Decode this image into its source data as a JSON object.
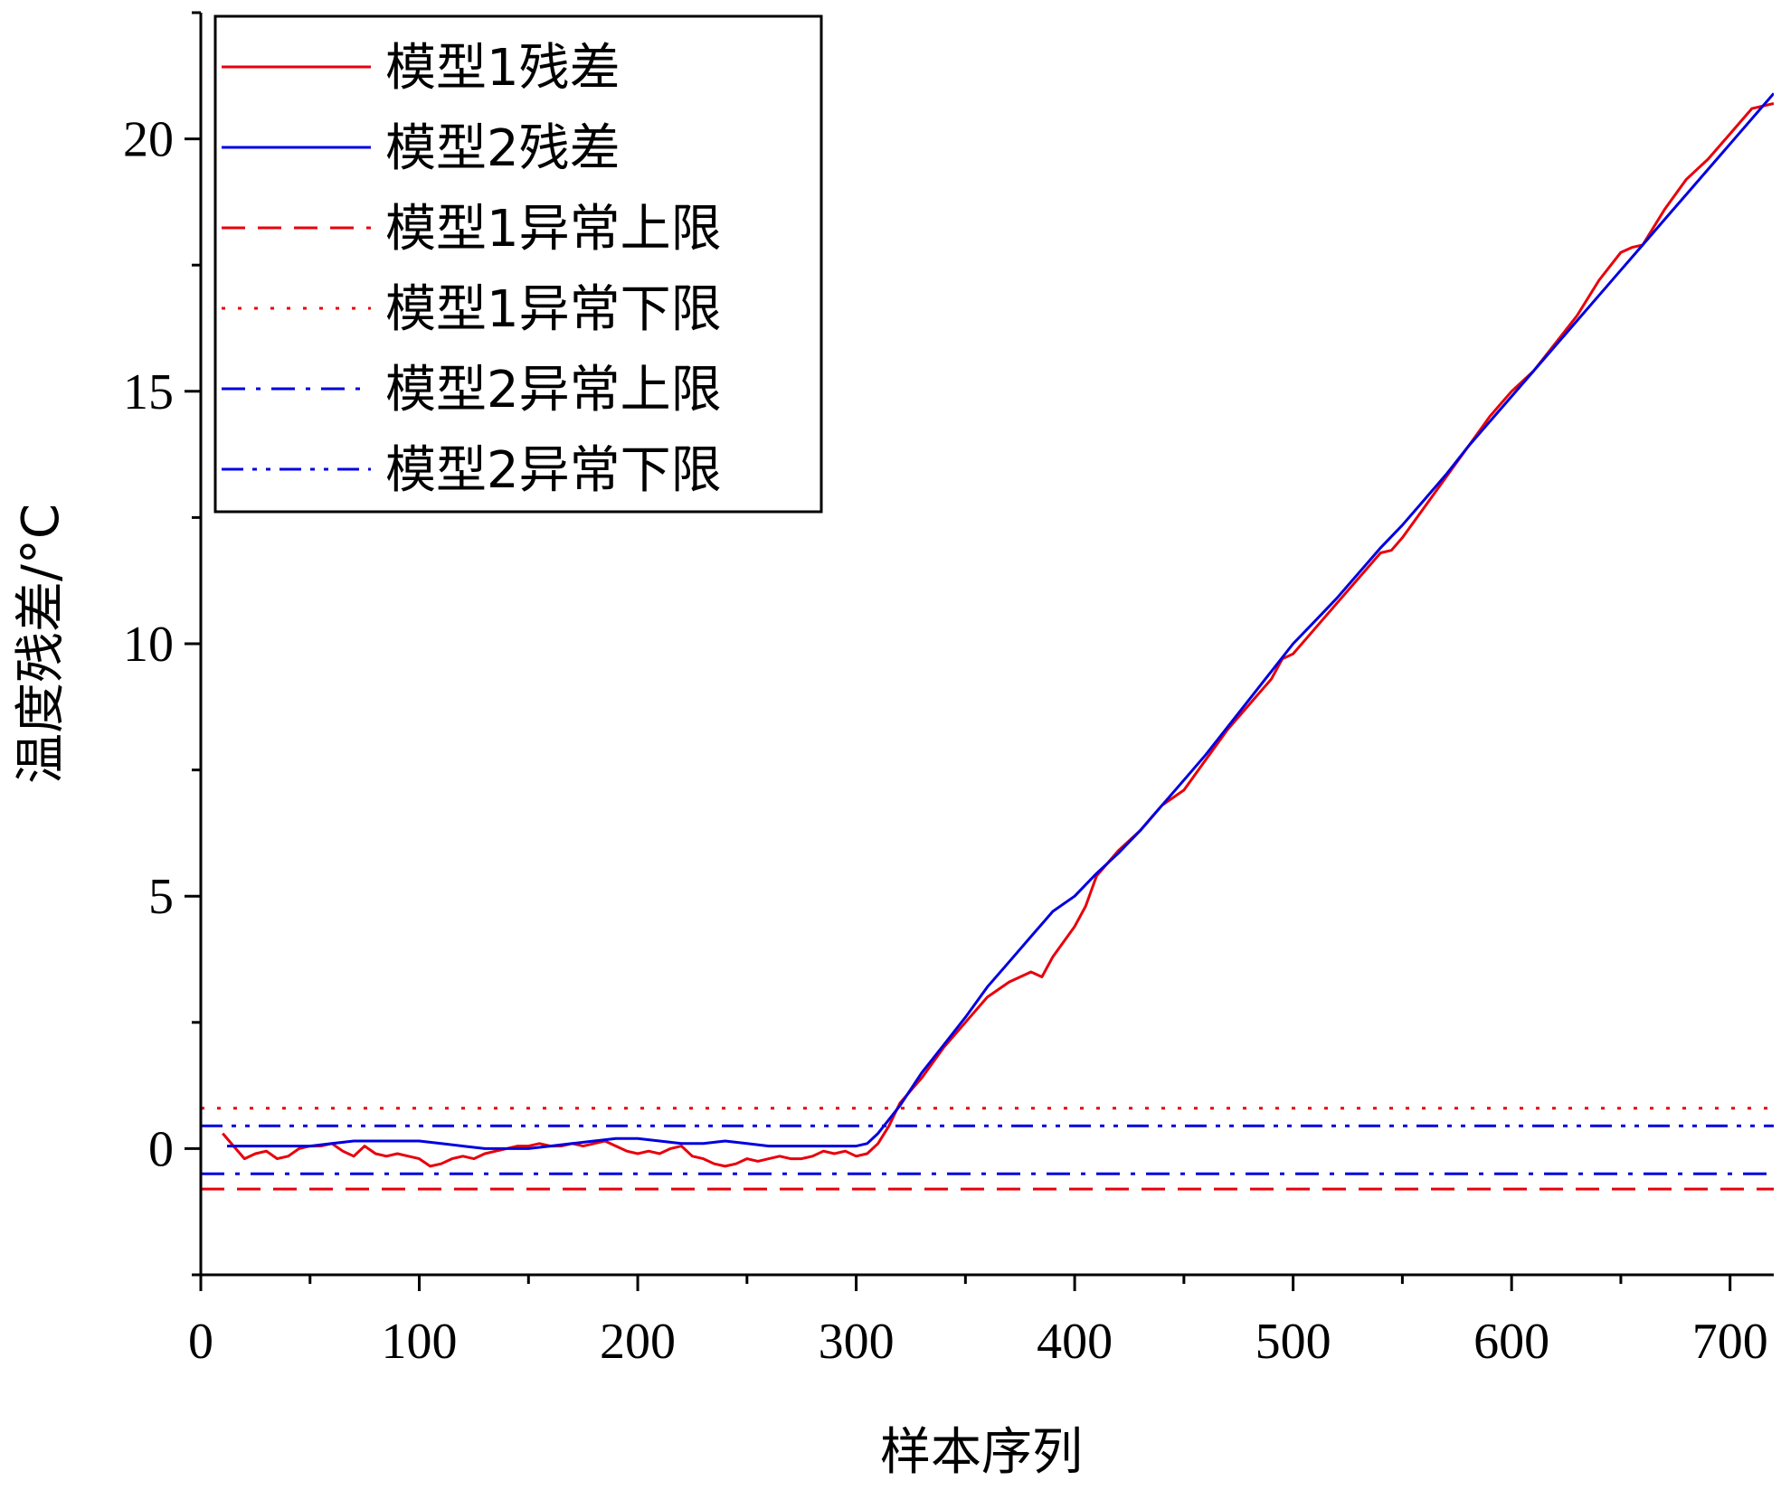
{
  "chart_data": {
    "type": "line",
    "title": "",
    "xlabel": "样本序列",
    "ylabel": "温度残差/°C",
    "xlim": [
      0,
      720
    ],
    "ylim": [
      -2.5,
      22.5
    ],
    "xticks_major": [
      0,
      100,
      200,
      300,
      400,
      500,
      600,
      700
    ],
    "xticks_minor": [
      50,
      150,
      250,
      350,
      450,
      550,
      650
    ],
    "yticks_major": [
      0,
      5,
      10,
      15,
      20
    ],
    "yticks_minor": [
      -2.5,
      2.5,
      7.5,
      12.5,
      17.5,
      22.5
    ],
    "grid": false,
    "legend_position": "top-left",
    "series": [
      {
        "name": "模型1残差",
        "color": "#e8000b",
        "style": "solid",
        "x": [
          10,
          15,
          20,
          25,
          30,
          35,
          40,
          45,
          50,
          55,
          60,
          65,
          70,
          75,
          80,
          85,
          90,
          95,
          100,
          105,
          110,
          115,
          120,
          125,
          130,
          135,
          140,
          145,
          150,
          155,
          160,
          165,
          170,
          175,
          180,
          185,
          190,
          195,
          200,
          205,
          210,
          215,
          220,
          225,
          230,
          235,
          240,
          245,
          250,
          255,
          260,
          265,
          270,
          275,
          280,
          285,
          290,
          295,
          300,
          305,
          310,
          315,
          320,
          330,
          340,
          350,
          360,
          370,
          380,
          385,
          390,
          400,
          405,
          410,
          420,
          430,
          440,
          450,
          460,
          470,
          480,
          490,
          495,
          500,
          510,
          520,
          530,
          540,
          545,
          550,
          560,
          570,
          580,
          590,
          600,
          610,
          620,
          630,
          640,
          650,
          655,
          660,
          670,
          680,
          690,
          700,
          710,
          720
        ],
        "y": [
          0.3,
          0.05,
          -0.2,
          -0.1,
          -0.05,
          -0.2,
          -0.15,
          0.0,
          0.05,
          0.05,
          0.1,
          -0.05,
          -0.15,
          0.05,
          -0.1,
          -0.15,
          -0.1,
          -0.15,
          -0.2,
          -0.35,
          -0.3,
          -0.2,
          -0.15,
          -0.2,
          -0.1,
          -0.05,
          0.0,
          0.05,
          0.05,
          0.1,
          0.05,
          0.05,
          0.1,
          0.05,
          0.1,
          0.15,
          0.05,
          -0.05,
          -0.1,
          -0.05,
          -0.1,
          0.0,
          0.05,
          -0.15,
          -0.2,
          -0.3,
          -0.35,
          -0.3,
          -0.2,
          -0.25,
          -0.2,
          -0.15,
          -0.2,
          -0.2,
          -0.15,
          -0.05,
          -0.1,
          -0.05,
          -0.15,
          -0.1,
          0.1,
          0.45,
          0.9,
          1.4,
          2.0,
          2.5,
          3.0,
          3.3,
          3.5,
          3.4,
          3.8,
          4.4,
          4.8,
          5.4,
          5.9,
          6.3,
          6.8,
          7.1,
          7.7,
          8.3,
          8.8,
          9.3,
          9.7,
          9.8,
          10.3,
          10.8,
          11.3,
          11.8,
          11.85,
          12.1,
          12.7,
          13.3,
          13.9,
          14.5,
          15.0,
          15.4,
          15.95,
          16.5,
          17.2,
          17.75,
          17.85,
          17.9,
          18.6,
          19.2,
          19.6,
          20.1,
          20.6,
          20.7
        ]
      },
      {
        "name": "模型2残差",
        "color": "#0000e0",
        "style": "solid",
        "x": [
          12,
          20,
          30,
          40,
          50,
          60,
          70,
          80,
          90,
          100,
          110,
          120,
          130,
          140,
          150,
          160,
          170,
          180,
          190,
          200,
          210,
          220,
          230,
          240,
          250,
          260,
          270,
          280,
          290,
          300,
          305,
          310,
          320,
          330,
          340,
          350,
          360,
          370,
          380,
          390,
          400,
          410,
          420,
          430,
          440,
          450,
          460,
          470,
          480,
          490,
          500,
          510,
          520,
          530,
          540,
          550,
          560,
          570,
          580,
          590,
          600,
          610,
          620,
          630,
          640,
          650,
          660,
          670,
          680,
          690,
          700,
          710,
          720
        ],
        "y": [
          0.05,
          0.05,
          0.05,
          0.05,
          0.05,
          0.1,
          0.15,
          0.15,
          0.15,
          0.15,
          0.1,
          0.05,
          0.0,
          0.0,
          0.0,
          0.05,
          0.1,
          0.15,
          0.2,
          0.2,
          0.15,
          0.1,
          0.1,
          0.15,
          0.1,
          0.05,
          0.05,
          0.05,
          0.05,
          0.05,
          0.1,
          0.3,
          0.85,
          1.5,
          2.05,
          2.6,
          3.2,
          3.7,
          4.2,
          4.7,
          5.0,
          5.45,
          5.85,
          6.3,
          6.8,
          7.3,
          7.8,
          8.35,
          8.9,
          9.45,
          10.0,
          10.45,
          10.9,
          11.4,
          11.9,
          12.35,
          12.85,
          13.35,
          13.9,
          14.4,
          14.9,
          15.4,
          15.9,
          16.4,
          16.9,
          17.4,
          17.9,
          18.4,
          18.9,
          19.4,
          19.9,
          20.4,
          20.9
        ]
      },
      {
        "name": "模型1异常上限",
        "color": "#e8000b",
        "style": "dashed",
        "x": [
          0,
          720
        ],
        "y": [
          -0.8,
          -0.8
        ]
      },
      {
        "name": "模型1异常下限",
        "color": "#e8000b",
        "style": "dotted",
        "x": [
          0,
          720
        ],
        "y": [
          0.8,
          0.8
        ]
      },
      {
        "name": "模型2异常上限",
        "color": "#0000e0",
        "style": "dashdot",
        "x": [
          0,
          720
        ],
        "y": [
          -0.5,
          -0.5
        ]
      },
      {
        "name": "模型2异常下限",
        "color": "#0000e0",
        "style": "dashdotdot",
        "x": [
          0,
          720
        ],
        "y": [
          0.45,
          0.45
        ]
      }
    ]
  }
}
